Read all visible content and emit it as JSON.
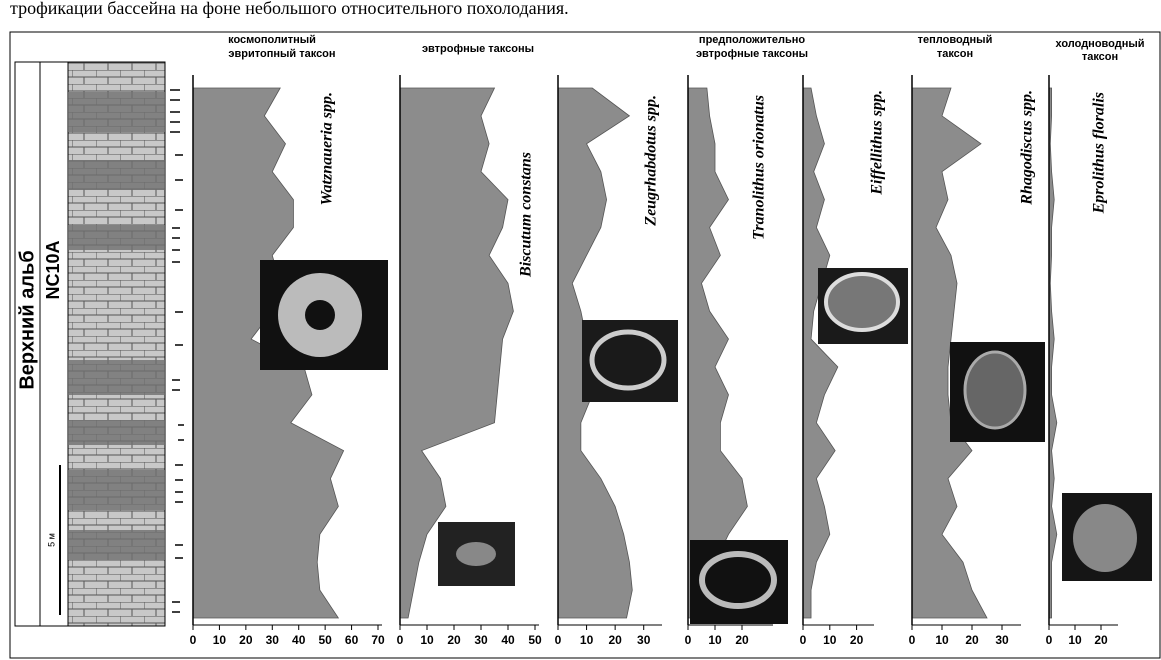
{
  "header_text": "трофикации бассейна на фоне небольшого относительного похолодания.",
  "stage_label": "Верхний альб",
  "zone_label": "NC10A",
  "scale_label": "5 м",
  "column_titles": [
    [
      "космополитный",
      "эвритопный таксон"
    ],
    [
      "эвтрофные таксоны"
    ],
    [
      "предположительно",
      "эвтрофные таксоны"
    ],
    [
      "тепловодный",
      "таксон"
    ],
    [
      "холодноводный",
      "таксон"
    ]
  ],
  "chart_data": [
    {
      "type": "area",
      "taxon": "Watznaueria spp.",
      "color": "#8c8c8c",
      "categories": [
        null,
        null,
        null,
        null,
        null,
        null,
        null,
        null,
        null,
        null,
        null,
        null,
        null,
        null,
        null,
        null,
        null,
        null,
        null,
        null
      ],
      "values": [
        33,
        27,
        35,
        30,
        38,
        38,
        30,
        33,
        30,
        22,
        42,
        45,
        37,
        57,
        52,
        55,
        48,
        47,
        48,
        55
      ],
      "xlim": [
        0,
        70
      ],
      "xticks": [
        0,
        10,
        20,
        30,
        40,
        50,
        60,
        70
      ]
    },
    {
      "type": "area",
      "taxon": "Biscutum constans",
      "color": "#8c8c8c",
      "categories": [
        null,
        null,
        null,
        null,
        null,
        null,
        null,
        null,
        null,
        null,
        null,
        null,
        null,
        null,
        null,
        null,
        null,
        null,
        null,
        null
      ],
      "values": [
        35,
        30,
        33,
        30,
        40,
        38,
        33,
        40,
        42,
        38,
        37,
        36,
        35,
        8,
        15,
        17,
        10,
        7,
        5,
        3
      ],
      "xlim": [
        0,
        50
      ],
      "xticks": [
        0,
        10,
        20,
        30,
        40,
        50
      ]
    },
    {
      "type": "area",
      "taxon": "Zeugrhabdotus spp.",
      "color": "#8c8c8c",
      "categories": [
        null,
        null,
        null,
        null,
        null,
        null,
        null,
        null,
        null,
        null,
        null,
        null,
        null,
        null,
        null,
        null,
        null,
        null,
        null,
        null
      ],
      "values": [
        12,
        25,
        10,
        15,
        17,
        15,
        10,
        5,
        8,
        10,
        10,
        12,
        8,
        8,
        15,
        20,
        23,
        25,
        26,
        24
      ],
      "xlim": [
        0,
        35
      ],
      "xticks": [
        0,
        10,
        20,
        30
      ]
    },
    {
      "type": "area",
      "taxon": "Tranolithus orionatus",
      "color": "#8c8c8c",
      "categories": [
        null,
        null,
        null,
        null,
        null,
        null,
        null,
        null,
        null,
        null,
        null,
        null,
        null,
        null,
        null,
        null,
        null,
        null,
        null,
        null
      ],
      "values": [
        7,
        8,
        10,
        10,
        15,
        8,
        12,
        5,
        8,
        15,
        10,
        15,
        12,
        12,
        20,
        22,
        15,
        10,
        10,
        3
      ],
      "xlim": [
        0,
        30
      ],
      "xticks": [
        0,
        10,
        20
      ]
    },
    {
      "type": "area",
      "taxon": "Eiffellithus spp.",
      "color": "#8c8c8c",
      "categories": [
        null,
        null,
        null,
        null,
        null,
        null,
        null,
        null,
        null,
        null,
        null,
        null,
        null,
        null,
        null,
        null,
        null,
        null,
        null,
        null
      ],
      "values": [
        3,
        5,
        8,
        4,
        8,
        5,
        10,
        7,
        4,
        3,
        13,
        8,
        5,
        12,
        5,
        8,
        10,
        5,
        3,
        3
      ],
      "xlim": [
        0,
        25
      ],
      "xticks": [
        0,
        10,
        20
      ]
    },
    {
      "type": "area",
      "taxon": "Rhagodiscus spp.",
      "color": "#8c8c8c",
      "categories": [
        null,
        null,
        null,
        null,
        null,
        null,
        null,
        null,
        null,
        null,
        null,
        null,
        null,
        null,
        null,
        null,
        null,
        null,
        null,
        null
      ],
      "values": [
        13,
        10,
        23,
        10,
        12,
        8,
        13,
        15,
        14,
        13,
        12,
        12,
        13,
        20,
        12,
        15,
        10,
        17,
        20,
        25
      ],
      "xlim": [
        0,
        35
      ],
      "xticks": [
        0,
        10,
        20,
        30
      ]
    },
    {
      "type": "area",
      "taxon": "Eprolithus floralis",
      "color": "#8c8c8c",
      "categories": [
        null,
        null,
        null,
        null,
        null,
        null,
        null,
        null,
        null,
        null,
        null,
        null,
        null,
        null,
        null,
        null,
        null,
        null,
        null,
        null
      ],
      "values": [
        1,
        1,
        0.5,
        1,
        2,
        1,
        1,
        0.5,
        1,
        2,
        1,
        1,
        3,
        1,
        2,
        1,
        3,
        1,
        1,
        1
      ],
      "xlim": [
        0,
        25
      ],
      "xticks": [
        0,
        10,
        20
      ]
    }
  ]
}
